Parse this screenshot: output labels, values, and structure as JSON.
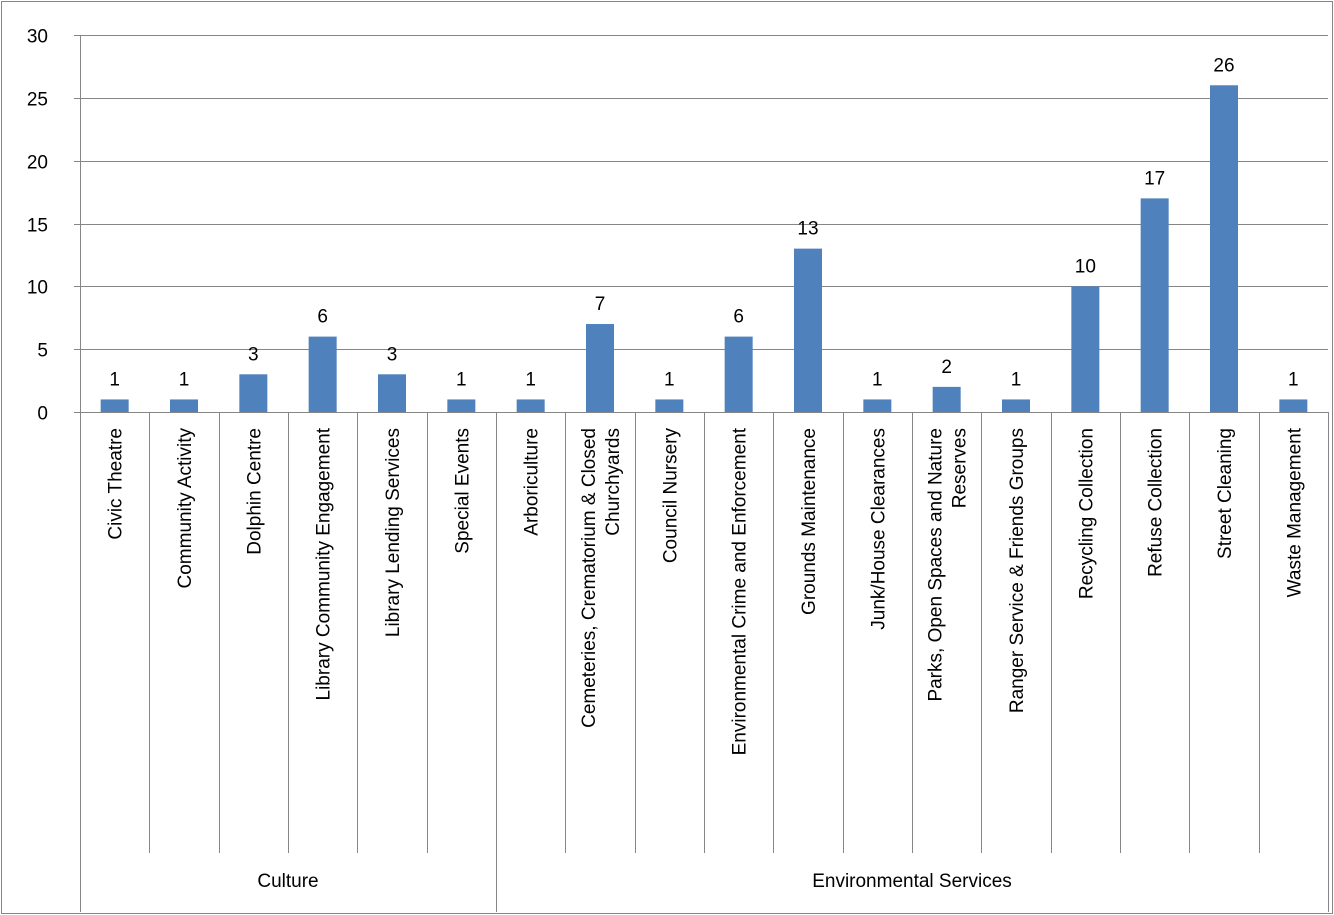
{
  "chart_data": {
    "type": "bar",
    "ylim": [
      0,
      30
    ],
    "yticks": [
      0,
      5,
      10,
      15,
      20,
      25,
      30
    ],
    "grid": true,
    "legend": "none",
    "bar_color": "#4F81BD",
    "categories": [
      [
        "Civic Theatre"
      ],
      [
        "Community Activity"
      ],
      [
        "Dolphin Centre"
      ],
      [
        "Library Community Engagement"
      ],
      [
        "Library Lending Services"
      ],
      [
        "Special Events"
      ],
      [
        "Arboriculture"
      ],
      [
        "Cemeteries, Crematorium & Closed",
        "Churchyards"
      ],
      [
        "Council Nursery"
      ],
      [
        "Environmental Crime and Enforcement"
      ],
      [
        "Grounds Maintenance"
      ],
      [
        "Junk/House Clearances"
      ],
      [
        "Parks, Open Spaces and Nature",
        "Reserves"
      ],
      [
        "Ranger Service & Friends Groups"
      ],
      [
        "Recycling Collection"
      ],
      [
        "Refuse Collection"
      ],
      [
        "Street Cleaning"
      ],
      [
        "Waste Management"
      ]
    ],
    "values": [
      1,
      1,
      3,
      6,
      3,
      1,
      1,
      7,
      1,
      6,
      13,
      1,
      2,
      1,
      10,
      17,
      26,
      1
    ],
    "groups": [
      {
        "name": "Culture",
        "count": 6
      },
      {
        "name": "Environmental Services",
        "count": 12
      }
    ]
  }
}
